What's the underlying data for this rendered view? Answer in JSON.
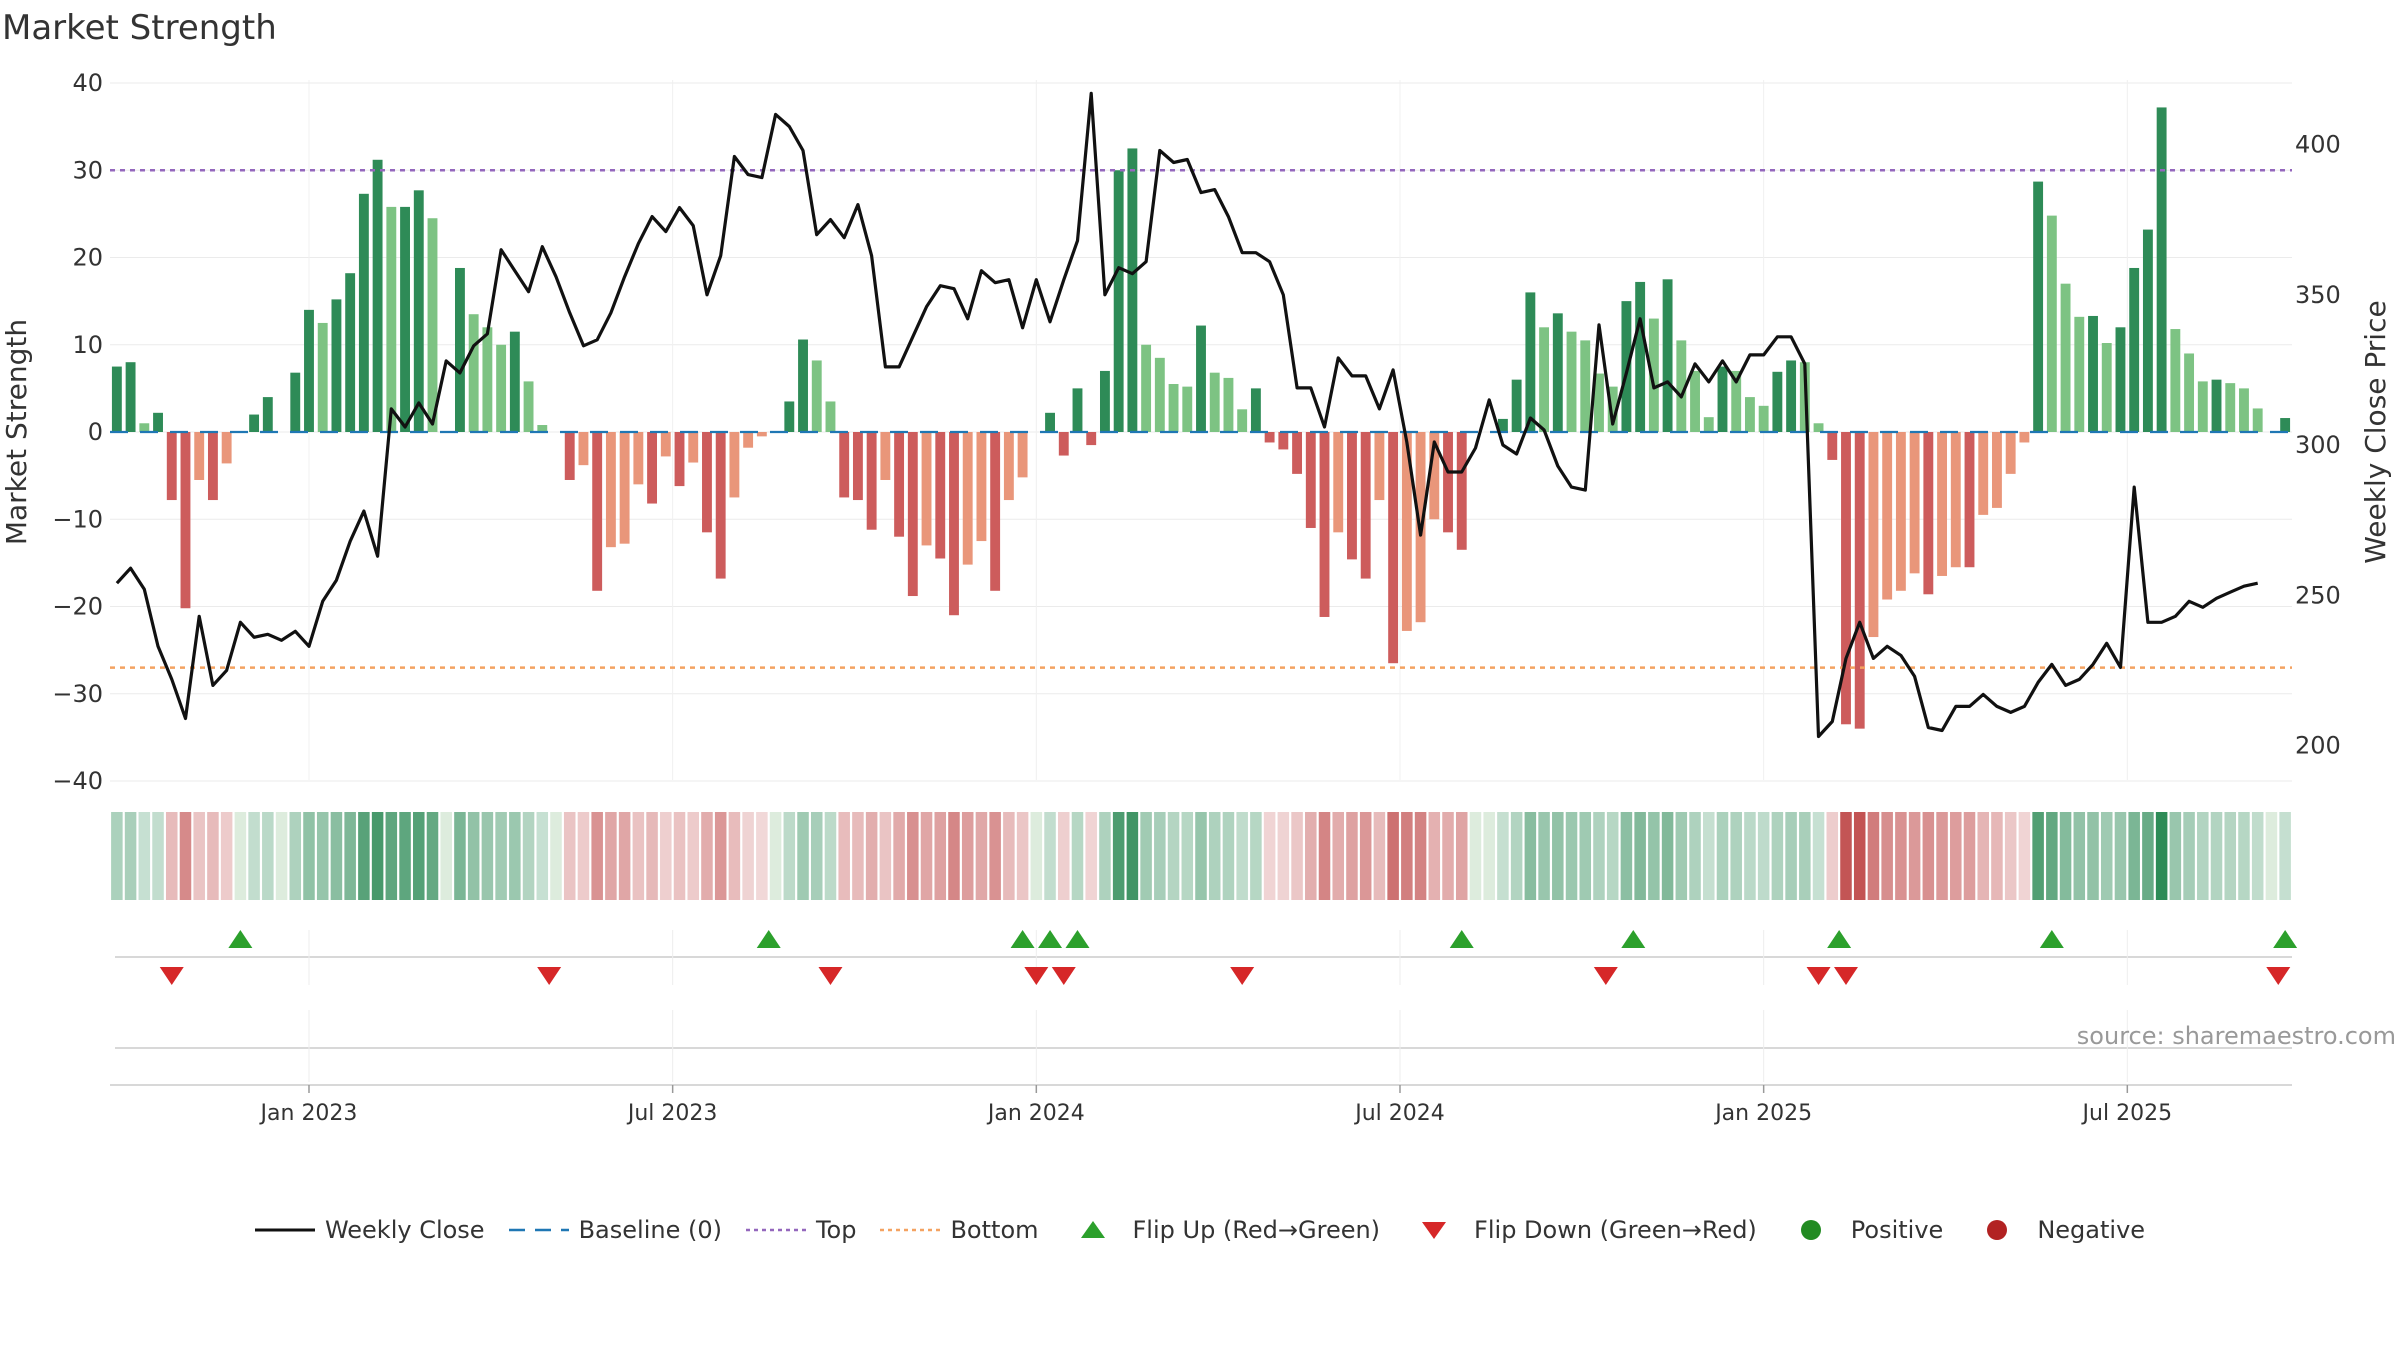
{
  "chart_data": {
    "type": "bar",
    "title": "Market Strength",
    "ylabel_left": "Market Strength",
    "ylabel_right": "Weekly Close Price",
    "y_left_range": [
      -40,
      40
    ],
    "y_left_ticks": [
      "40",
      "30",
      "20",
      "10",
      "0",
      "−10",
      "−20",
      "−30",
      "−40"
    ],
    "y_left_tick_values": [
      40,
      30,
      20,
      10,
      0,
      -10,
      -20,
      -30,
      -40
    ],
    "y_right_ticks": [
      "400",
      "350",
      "300",
      "250",
      "200"
    ],
    "y_right_tick_values": [
      400,
      350,
      300,
      250,
      200
    ],
    "x_tick_labels": [
      "Jan 2023",
      "Jul 2023",
      "Jan 2024",
      "Jul 2024",
      "Jan 2025",
      "Jul 2025"
    ],
    "x_tick_weeks": [
      14,
      40.5,
      67,
      93.5,
      120,
      146.5
    ],
    "top_level": 30,
    "bottom_level": -27,
    "strength": [
      7.5,
      8,
      1,
      2.2,
      -7.8,
      -20.2,
      -5.5,
      -7.8,
      -3.6,
      0,
      2,
      4,
      0,
      6.8,
      14,
      12.5,
      15.2,
      18.2,
      27.3,
      31.2,
      25.8,
      25.8,
      27.7,
      24.5,
      0,
      18.8,
      13.5,
      12,
      10,
      11.5,
      5.8,
      0.8,
      0,
      -5.5,
      -3.8,
      -18.2,
      -13.2,
      -12.8,
      -6,
      -8.2,
      -2.8,
      -6.2,
      -3.5,
      -11.5,
      -16.8,
      -7.5,
      -1.8,
      -0.5,
      0,
      3.5,
      10.6,
      8.2,
      3.5,
      -7.5,
      -7.8,
      -11.2,
      -5.5,
      -12,
      -18.8,
      -13,
      -14.5,
      -21,
      -15.2,
      -12.5,
      -18.2,
      -7.8,
      -5.2,
      0,
      2.2,
      -2.7,
      5,
      -1.5,
      7,
      30,
      32.5,
      10,
      8.5,
      5.5,
      5.2,
      12.2,
      6.8,
      6.2,
      2.6,
      5,
      -1.2,
      -2,
      -4.8,
      -11,
      -21.2,
      -11.5,
      -14.6,
      -16.8,
      -7.8,
      -26.5,
      -22.8,
      -21.8,
      -10,
      -11.5,
      -13.5,
      0,
      0,
      1.5,
      6,
      16,
      12,
      13.6,
      11.5,
      10.5,
      6.7,
      5.2,
      15,
      17.2,
      13,
      17.5,
      10.5,
      7,
      1.7,
      7.5,
      7,
      4,
      3,
      6.9,
      8.2,
      8,
      1,
      -3.2,
      -33.5,
      -34,
      -23.5,
      -19.2,
      -18.2,
      -16.2,
      -18.6,
      -16.5,
      -15.5,
      -15.5,
      -9.5,
      -8.7,
      -4.8,
      -1.2,
      28.7,
      24.8,
      17,
      13.2,
      13.3,
      10.2,
      12,
      18.8,
      23.2,
      37.2,
      11.8,
      9,
      5.8,
      6,
      5.6,
      5,
      2.7,
      0,
      1.6
    ],
    "close": [
      254,
      259,
      252,
      233,
      222,
      209,
      243,
      220,
      225,
      241,
      236,
      237,
      235,
      238,
      233,
      248,
      255,
      268,
      278,
      263,
      312,
      306,
      314,
      307,
      328,
      324,
      333,
      337,
      365,
      358,
      351,
      366,
      356,
      344,
      333,
      335,
      344,
      356,
      367,
      376,
      371,
      379,
      373,
      350,
      363,
      396,
      390,
      389,
      410,
      406,
      398,
      370,
      375,
      369,
      380,
      363,
      326,
      326,
      336,
      346,
      353,
      352,
      342,
      358,
      354,
      355,
      339,
      355,
      341,
      355,
      368,
      417,
      350,
      359,
      357,
      361,
      398,
      394,
      395,
      384,
      385,
      376,
      364,
      364,
      361,
      350,
      319,
      319,
      306,
      329,
      323,
      323,
      312,
      325,
      301,
      270,
      301,
      291,
      291,
      299,
      315,
      300,
      297,
      309,
      305,
      293,
      286,
      285,
      340,
      307,
      324,
      342,
      319,
      321,
      316,
      327,
      321,
      328,
      321,
      330,
      330,
      336,
      336,
      327,
      203,
      208,
      229,
      241,
      229,
      233,
      230,
      223,
      206,
      205,
      213,
      213,
      217,
      213,
      211,
      213,
      221,
      227,
      220,
      222,
      227,
      234,
      226,
      286,
      241,
      241,
      243,
      248,
      246,
      249,
      251,
      253,
      254
    ],
    "band_groups_order": [
      "dark green",
      "mid green",
      "light green",
      "pale green",
      "pale red",
      "light red",
      "mid red",
      "dark red"
    ],
    "flip_up_weeks": [
      9,
      47.5,
      66,
      68,
      70,
      98,
      110.5,
      125.5,
      141,
      158
    ],
    "flip_down_weeks": [
      4,
      31.5,
      52,
      67,
      69,
      82,
      108.5,
      124,
      126,
      157.5
    ],
    "colors": {
      "green_dark": "#2e8b57",
      "green_light": "#7dc383",
      "red_dark": "#cd5c5c",
      "red_light": "#e9967a",
      "top_line": "#9467bd",
      "bottom_line": "#f4a261",
      "baseline": "#1f77b4",
      "close_line": "#111111",
      "flip_up": "#2ca02c",
      "flip_down": "#d62728",
      "positive": "#228b22",
      "negative": "#b22222"
    },
    "legend": [
      {
        "label": "Weekly Close",
        "kind": "line"
      },
      {
        "label": "Baseline (0)",
        "kind": "dash"
      },
      {
        "label": "Top",
        "kind": "dot-purple"
      },
      {
        "label": "Bottom",
        "kind": "dot-orange"
      },
      {
        "label": "Flip Up (Red→Green)",
        "kind": "tri-up"
      },
      {
        "label": "Flip Down (Green→Red)",
        "kind": "tri-down"
      },
      {
        "label": "Positive",
        "kind": "dot-green"
      },
      {
        "label": "Negative",
        "kind": "dot-red"
      }
    ]
  },
  "source_text": "source: sharemaestro.com"
}
